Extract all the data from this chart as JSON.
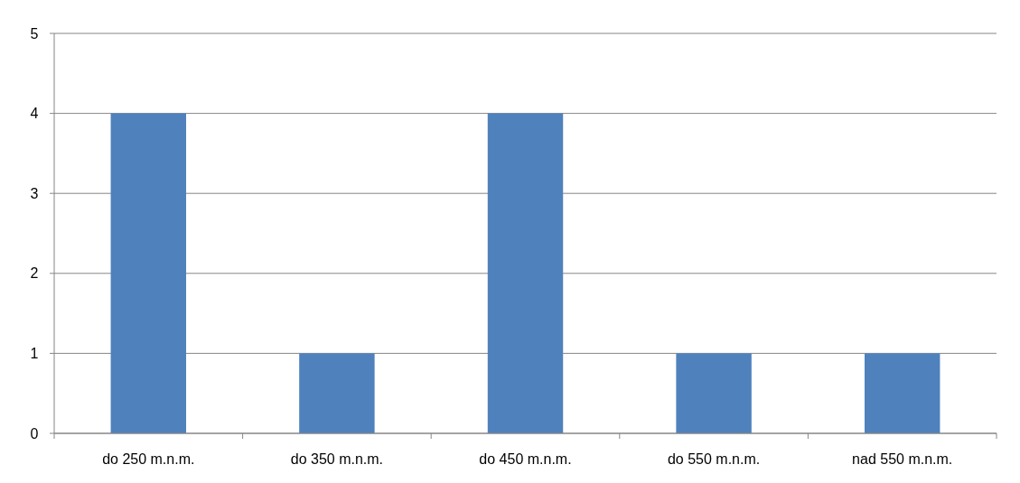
{
  "chart_data": {
    "type": "bar",
    "categories": [
      "do 250 m.n.m.",
      "do 350 m.n.m.",
      "do 450 m.n.m.",
      "do 550 m.n.m.",
      "nad 550 m.n.m."
    ],
    "values": [
      4,
      1,
      4,
      1,
      1
    ],
    "color": "#4f81bd",
    "ylim": [
      0,
      5
    ],
    "yticks": [
      0,
      1,
      2,
      3,
      4,
      5
    ],
    "grid": "y"
  }
}
